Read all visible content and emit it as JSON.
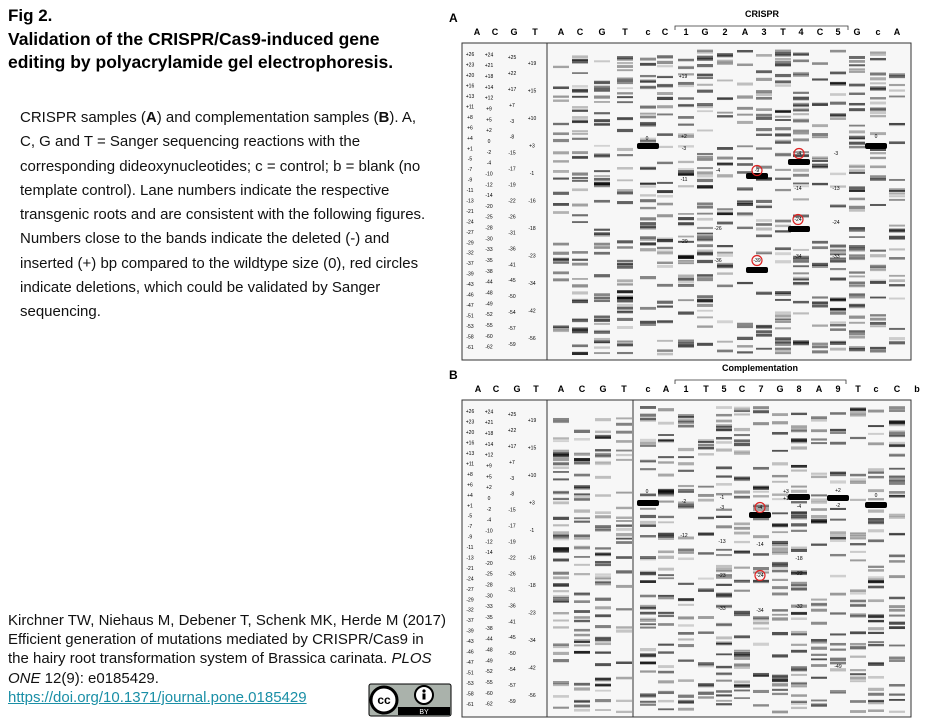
{
  "header": {
    "fig": "Fig 2.",
    "title": "Validation of the CRISPR/Cas9-induced gene editing by polyacrylamide gel electrophoresis."
  },
  "description": [
    "CRISPR samples (",
    "A",
    ") and complementation samples (",
    "B",
    "). A, C, G and T = Sanger sequencing reactions with the corresponding dideoxynucleotides; c = control; b = blank (no template control). Lane numbers indicate the respective transgenic roots and are consistent with the following figures. Numbers close to the bands indicate the deleted (-) and inserted (+) bp compared to the wildtype size (0), red circles indicate deletions, which could be validated by Sanger sequencing."
  ],
  "citation": {
    "text": "Kirchner TW, Niehaus M, Debener T, Schenk MK, Herde M (2017) Efficient generation of mutations mediated by CRISPR/Cas9 in the hairy root transformation system of Brassica carinata. ",
    "journal": "PLOS ONE",
    "details": " 12(9): e0185429.",
    "doi": "https://doi.org/10.1371/journal.pone.0185429"
  },
  "license": {
    "cc": "cc",
    "by": "BY"
  },
  "panels": [
    {
      "label": "A",
      "group": "CRISPR",
      "lanes": [
        "A",
        "C",
        "G",
        "T",
        "A",
        "C",
        "G",
        "T",
        "c",
        "C",
        "1",
        "G",
        "2",
        "A",
        "3",
        "T",
        "4",
        "C",
        "5",
        "G",
        "c",
        "A"
      ],
      "annotations": [
        "+19",
        "+2",
        "-3",
        "-11",
        "-29",
        "-4",
        "-26",
        "-36",
        "-9",
        "-39",
        "-14",
        "-24",
        "-34",
        "-4",
        "-13",
        "-3",
        "-24",
        "-33",
        "0",
        "0"
      ]
    },
    {
      "label": "B",
      "group": "Complementation",
      "lanes": [
        "A",
        "C",
        "G",
        "T",
        "A",
        "C",
        "G",
        "T",
        "c",
        "A",
        "1",
        "T",
        "5",
        "C",
        "7",
        "G",
        "8",
        "A",
        "9",
        "T",
        "c",
        "C",
        "b"
      ],
      "annotations": [
        "0",
        "-2",
        "-12",
        "-1",
        "-3",
        "-13",
        "-23",
        "-33",
        "-4",
        "-14",
        "-24",
        "-34",
        "+3",
        "+1",
        "-4",
        "-18",
        "-22",
        "-32",
        "+2",
        "-2",
        "-49",
        "0"
      ]
    }
  ],
  "ladder": [
    [
      "+26",
      "+23",
      "+20",
      "+16",
      "+13",
      "+11",
      "+8",
      "+6",
      "+4",
      "+1",
      "-5",
      "-7",
      "-9",
      "-11",
      "-13",
      "-21",
      "-24",
      "-27",
      "-29",
      "-32",
      "-37",
      "-39",
      "-43",
      "-46",
      "-47",
      "-51",
      "-53",
      "-58",
      "-61"
    ],
    [
      "+24",
      "+21",
      "+18",
      "+14",
      "+12",
      "+9",
      "+5",
      "+2",
      "0",
      "-2",
      "-4",
      "-10",
      "-12",
      "-14",
      "-20",
      "-25",
      "-28",
      "-30",
      "-33",
      "-35",
      "-38",
      "-44",
      "-48",
      "-49",
      "-52",
      "-55",
      "-60",
      "-62"
    ],
    [
      "+25",
      "+22",
      "+17",
      "+7",
      "-3",
      "-8",
      "-15",
      "-17",
      "-19",
      "-22",
      "-26",
      "-31",
      "-36",
      "-41",
      "-45",
      "-50",
      "-54",
      "-57",
      "-59"
    ],
    [
      "+19",
      "+15",
      "+10",
      "+3",
      "-1",
      "-16",
      "-18",
      "-23",
      "-34",
      "-42",
      "-56"
    ]
  ]
}
